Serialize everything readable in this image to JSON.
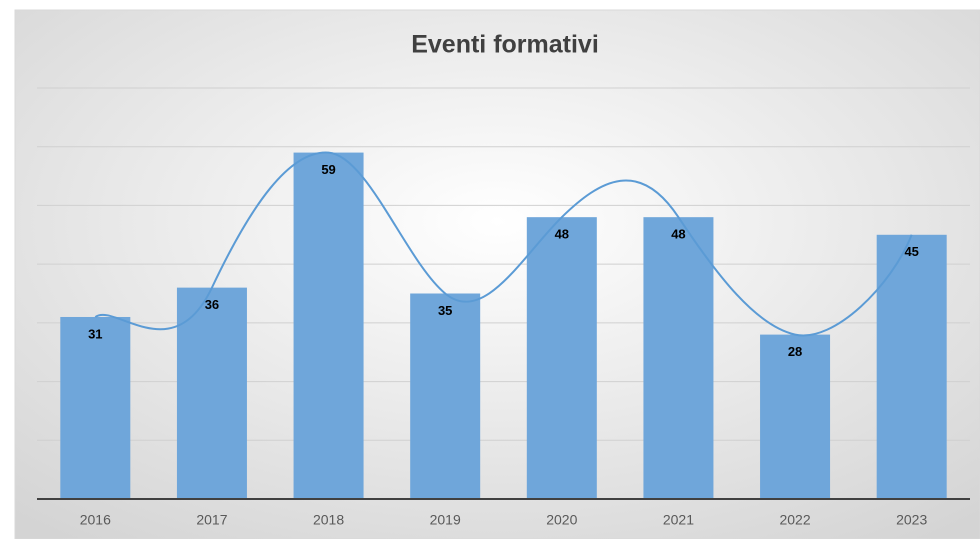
{
  "chart_data": {
    "type": "bar",
    "title": "Eventi formativi",
    "categories": [
      "2016",
      "2017",
      "2018",
      "2019",
      "2020",
      "2021",
      "2022",
      "2023"
    ],
    "values": [
      31,
      36,
      59,
      35,
      48,
      48,
      28,
      45
    ],
    "color": "#6fa6da",
    "line_color": "#5b9bd5",
    "smooth_line": true,
    "ylim": [
      0,
      70
    ],
    "yticks": [
      0,
      10,
      20,
      30,
      40,
      50,
      60,
      70
    ],
    "grid": true
  }
}
